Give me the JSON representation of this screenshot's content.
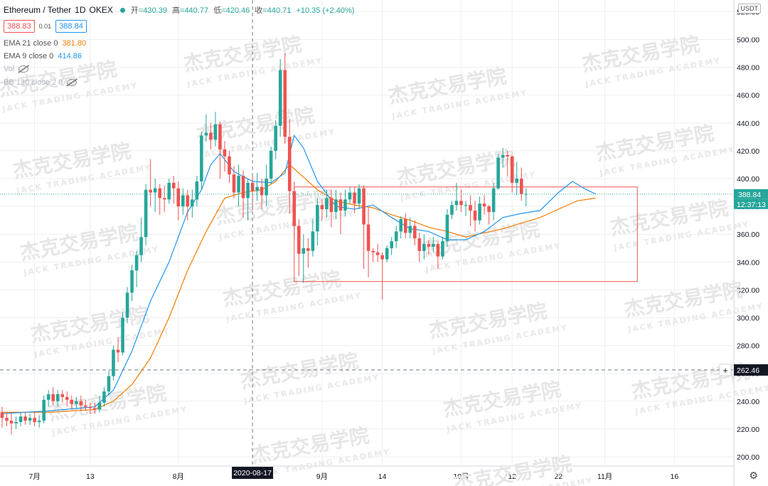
{
  "header": {
    "symbol": "Ethereum / Tether",
    "interval": "1D",
    "exchange": "OKEX",
    "open_label": "开",
    "open": "=430.39",
    "high_label": "高",
    "high": "=440.77",
    "low_label": "低",
    "low": "=420.46",
    "close_label": "收",
    "close": "=440.71",
    "change": "+10.35 (+2.40%)"
  },
  "trade": {
    "sell": "388.83",
    "spread": "0.01",
    "buy": "388.84"
  },
  "indicators": [
    {
      "label": "EMA 21 close 0",
      "value": "381.80",
      "color": "#f57c00"
    },
    {
      "label": "EMA 9 close 0",
      "value": "414.86",
      "color": "#2196f3"
    },
    {
      "label": "Vol",
      "value": "",
      "color": "#b2b5be"
    },
    {
      "label": "BB 130 close 2 0",
      "value": "",
      "color": "#b2b5be"
    }
  ],
  "price_axis": {
    "currency": "USDT",
    "current_price": "388.84",
    "countdown": "12:37:13",
    "crosshair_price": "262.46",
    "crosshair_plus": "+"
  },
  "time_axis": {
    "crosshair_date": "2020-08-17",
    "ticks": [
      "7月",
      "13",
      "8月",
      "9月",
      "14",
      "10月",
      "12",
      "22",
      "11月",
      "16"
    ]
  },
  "watermark": {
    "cn": "杰克交易学院",
    "en": "JACK TRADING ACADEMY"
  },
  "colors": {
    "up": "#26a69a",
    "down": "#ef5350",
    "ema9": "#2196f3",
    "ema21": "#f57c00",
    "box": "#ef5350",
    "grid": "#eceff3"
  },
  "chart_data": {
    "type": "candlestick",
    "title": "Ethereum / Tether 1D OKEX",
    "xlabel": "",
    "ylabel": "",
    "ylim": [
      190,
      520
    ],
    "y_ticks": [
      200,
      220,
      240,
      260,
      280,
      300,
      320,
      340,
      360,
      380,
      400,
      420,
      440,
      460,
      480,
      500,
      520
    ],
    "x_ticks": [
      {
        "label": "7月",
        "date": "2020-07-01"
      },
      {
        "label": "13",
        "date": "2020-07-13"
      },
      {
        "label": "8月",
        "date": "2020-08-01"
      },
      {
        "label": "9月",
        "date": "2020-09-01"
      },
      {
        "label": "14",
        "date": "2020-09-14"
      },
      {
        "label": "10月",
        "date": "2020-10-01"
      },
      {
        "label": "12",
        "date": "2020-10-12"
      },
      {
        "label": "22",
        "date": "2020-10-22"
      },
      {
        "label": "11月",
        "date": "2020-11-01"
      },
      {
        "label": "16",
        "date": "2020-11-16"
      }
    ],
    "first_date": "2020-06-24",
    "candles": [
      [
        232,
        228,
        236,
        221
      ],
      [
        228,
        226,
        232,
        222
      ],
      [
        226,
        224,
        232,
        216
      ],
      [
        224,
        225,
        229,
        220
      ],
      [
        225,
        229,
        232,
        222
      ],
      [
        229,
        226,
        232,
        223
      ],
      [
        226,
        228,
        231,
        223
      ],
      [
        228,
        225,
        232,
        222
      ],
      [
        225,
        226,
        230,
        221
      ],
      [
        226,
        241,
        244,
        224
      ],
      [
        241,
        245,
        248,
        236
      ],
      [
        245,
        240,
        250,
        237
      ],
      [
        240,
        245,
        248,
        236
      ],
      [
        245,
        243,
        248,
        239
      ],
      [
        243,
        241,
        247,
        236
      ],
      [
        241,
        238,
        244,
        234
      ],
      [
        238,
        240,
        243,
        235
      ],
      [
        240,
        237,
        244,
        233
      ],
      [
        237,
        236,
        241,
        233
      ],
      [
        236,
        235,
        239,
        231
      ],
      [
        235,
        234,
        239,
        231
      ],
      [
        234,
        239,
        244,
        232
      ],
      [
        239,
        247,
        250,
        236
      ],
      [
        247,
        258,
        262,
        244
      ],
      [
        258,
        277,
        280,
        255
      ],
      [
        277,
        275,
        286,
        268
      ],
      [
        275,
        300,
        304,
        273
      ],
      [
        300,
        318,
        322,
        296
      ],
      [
        318,
        334,
        338,
        312
      ],
      [
        334,
        345,
        348,
        322
      ],
      [
        345,
        358,
        372,
        340
      ],
      [
        358,
        392,
        396,
        352
      ],
      [
        392,
        390,
        414,
        380
      ],
      [
        390,
        393,
        400,
        376
      ],
      [
        393,
        386,
        396,
        374
      ],
      [
        386,
        385,
        395,
        376
      ],
      [
        385,
        397,
        400,
        382
      ],
      [
        397,
        393,
        402,
        382
      ],
      [
        393,
        380,
        398,
        370
      ],
      [
        380,
        388,
        393,
        374
      ],
      [
        388,
        380,
        392,
        370
      ],
      [
        380,
        385,
        392,
        372
      ],
      [
        385,
        398,
        402,
        380
      ],
      [
        398,
        431,
        434,
        392
      ],
      [
        431,
        433,
        446,
        427
      ],
      [
        433,
        428,
        440,
        421
      ],
      [
        428,
        439,
        448,
        423
      ],
      [
        439,
        421,
        441,
        400
      ],
      [
        421,
        416,
        427,
        405
      ],
      [
        416,
        403,
        420,
        397
      ],
      [
        403,
        390,
        409,
        386
      ],
      [
        390,
        402,
        410,
        380
      ],
      [
        402,
        386,
        406,
        372
      ],
      [
        386,
        397,
        400,
        370
      ],
      [
        397,
        391,
        402,
        377
      ],
      [
        391,
        394,
        404,
        384
      ],
      [
        394,
        388,
        400,
        378
      ],
      [
        388,
        400,
        410,
        380
      ],
      [
        400,
        420,
        423,
        396
      ],
      [
        420,
        438,
        442,
        414
      ],
      [
        438,
        478,
        486,
        430
      ],
      [
        478,
        430,
        490,
        425
      ],
      [
        430,
        391,
        443,
        375
      ],
      [
        391,
        366,
        398,
        357
      ],
      [
        366,
        346,
        371,
        330
      ],
      [
        346,
        350,
        360,
        325
      ],
      [
        350,
        348,
        357,
        336
      ],
      [
        348,
        362,
        371,
        344
      ],
      [
        362,
        381,
        386,
        352
      ],
      [
        381,
        378,
        385,
        370
      ],
      [
        378,
        386,
        392,
        372
      ],
      [
        386,
        376,
        392,
        365
      ],
      [
        376,
        385,
        392,
        371
      ],
      [
        385,
        377,
        390,
        360
      ],
      [
        377,
        385,
        392,
        373
      ],
      [
        385,
        390,
        394,
        382
      ],
      [
        390,
        382,
        394,
        375
      ],
      [
        382,
        393,
        396,
        378
      ],
      [
        393,
        367,
        395,
        335
      ],
      [
        367,
        348,
        379,
        329
      ],
      [
        348,
        347,
        350,
        340
      ],
      [
        347,
        345,
        353,
        340
      ],
      [
        345,
        342,
        347,
        313
      ],
      [
        342,
        350,
        352,
        340
      ],
      [
        350,
        355,
        358,
        345
      ],
      [
        355,
        362,
        366,
        350
      ],
      [
        362,
        371,
        373,
        357
      ],
      [
        371,
        361,
        375,
        357
      ],
      [
        361,
        366,
        372,
        357
      ],
      [
        366,
        357,
        370,
        352
      ],
      [
        357,
        348,
        361,
        340
      ],
      [
        348,
        353,
        360,
        342
      ],
      [
        353,
        351,
        356,
        345
      ],
      [
        351,
        353,
        358,
        347
      ],
      [
        353,
        344,
        355,
        335
      ],
      [
        344,
        355,
        358,
        342
      ],
      [
        355,
        374,
        378,
        351
      ],
      [
        374,
        381,
        384,
        371
      ],
      [
        381,
        384,
        397,
        377
      ],
      [
        384,
        381,
        392,
        376
      ],
      [
        381,
        381,
        384,
        373
      ],
      [
        381,
        377,
        388,
        366
      ],
      [
        377,
        370,
        384,
        362
      ],
      [
        370,
        382,
        387,
        367
      ],
      [
        382,
        380,
        388,
        374
      ],
      [
        380,
        376,
        381,
        367
      ],
      [
        376,
        393,
        397,
        370
      ],
      [
        393,
        415,
        418,
        392
      ],
      [
        415,
        417,
        422,
        408
      ],
      [
        417,
        416,
        420,
        402
      ],
      [
        416,
        397,
        417,
        390
      ],
      [
        397,
        400,
        412,
        388
      ],
      [
        400,
        389,
        408,
        384
      ],
      [
        389,
        389,
        393,
        380
      ]
    ],
    "ema9": [
      [
        0,
        231
      ],
      [
        10,
        233
      ],
      [
        20,
        236
      ],
      [
        24,
        248
      ],
      [
        28,
        276
      ],
      [
        32,
        312
      ],
      [
        36,
        340
      ],
      [
        40,
        376
      ],
      [
        43,
        392
      ],
      [
        45,
        410
      ],
      [
        47,
        418
      ],
      [
        50,
        405
      ],
      [
        54,
        398
      ],
      [
        58,
        397
      ],
      [
        61,
        404
      ],
      [
        63,
        431
      ],
      [
        65,
        422
      ],
      [
        68,
        398
      ],
      [
        72,
        380
      ],
      [
        76,
        378
      ],
      [
        80,
        381
      ],
      [
        84,
        372
      ],
      [
        88,
        364
      ],
      [
        92,
        362
      ],
      [
        96,
        356
      ],
      [
        100,
        356
      ],
      [
        104,
        362
      ],
      [
        108,
        372
      ],
      [
        112,
        375
      ],
      [
        116,
        377
      ],
      [
        120,
        390
      ],
      [
        123,
        398
      ],
      [
        126,
        392
      ],
      [
        128,
        389
      ]
    ],
    "ema21": [
      [
        0,
        232
      ],
      [
        10,
        232
      ],
      [
        20,
        234
      ],
      [
        24,
        240
      ],
      [
        28,
        252
      ],
      [
        32,
        271
      ],
      [
        36,
        300
      ],
      [
        40,
        334
      ],
      [
        44,
        362
      ],
      [
        48,
        386
      ],
      [
        52,
        390
      ],
      [
        56,
        392
      ],
      [
        59,
        398
      ],
      [
        62,
        410
      ],
      [
        64,
        404
      ],
      [
        68,
        392
      ],
      [
        72,
        384
      ],
      [
        76,
        381
      ],
      [
        80,
        379
      ],
      [
        84,
        374
      ],
      [
        88,
        370
      ],
      [
        92,
        365
      ],
      [
        96,
        362
      ],
      [
        100,
        358
      ],
      [
        104,
        361
      ],
      [
        108,
        364
      ],
      [
        112,
        368
      ],
      [
        116,
        372
      ],
      [
        120,
        378
      ],
      [
        124,
        384
      ],
      [
        128,
        386
      ]
    ],
    "annotations": [
      {
        "type": "rectangle",
        "label": "",
        "from_index": 63,
        "to_index": 137,
        "y_top": 394,
        "y_bottom": 326
      }
    ],
    "current_price": 388.84,
    "crosshair_price": 262.46,
    "crosshair_date": "2020-08-17"
  }
}
